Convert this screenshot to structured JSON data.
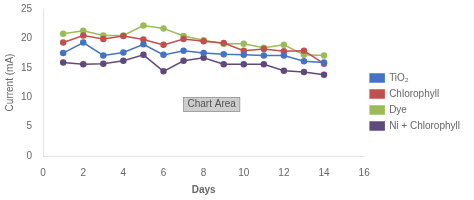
{
  "chart_data": {
    "type": "line",
    "x": [
      1,
      2,
      3,
      4,
      5,
      6,
      7,
      8,
      9,
      10,
      11,
      12,
      13,
      14
    ],
    "series": [
      {
        "name": "TiO₂",
        "color": "#4472C4",
        "values": [
          17.5,
          19.3,
          17.1,
          17.6,
          19.0,
          17.2,
          17.9,
          17.5,
          17.3,
          17.2,
          17.1,
          17.1,
          16.1,
          15.9
        ]
      },
      {
        "name": "Chlorophyll",
        "color": "#C0504D",
        "values": [
          19.3,
          20.5,
          19.9,
          20.4,
          19.8,
          18.9,
          19.9,
          19.5,
          19.2,
          17.9,
          18.2,
          17.8,
          17.9,
          15.7
        ]
      },
      {
        "name": "Dye",
        "color": "#9BBB59",
        "values": [
          20.8,
          21.3,
          20.5,
          20.5,
          22.2,
          21.7,
          20.4,
          19.7,
          19.1,
          19.1,
          18.4,
          18.9,
          17.2,
          17.1
        ]
      },
      {
        "name": "Ni + Chlorophyll",
        "color": "#604A7B",
        "values": [
          15.9,
          15.6,
          15.7,
          16.2,
          17.2,
          14.4,
          16.2,
          16.7,
          15.6,
          15.6,
          15.6,
          14.5,
          14.3,
          13.8
        ]
      }
    ],
    "xlabel": "Days",
    "ylabel": "Current (mA)",
    "xlim": [
      0,
      16
    ],
    "xticks": [
      0,
      2,
      4,
      6,
      8,
      10,
      12,
      14,
      16
    ],
    "ylim": [
      0,
      25
    ],
    "yticks": [
      0,
      5,
      10,
      15,
      20,
      25
    ],
    "annotations": [
      "Chart Area"
    ],
    "marker": "circle",
    "grid": false,
    "legend": "right"
  }
}
